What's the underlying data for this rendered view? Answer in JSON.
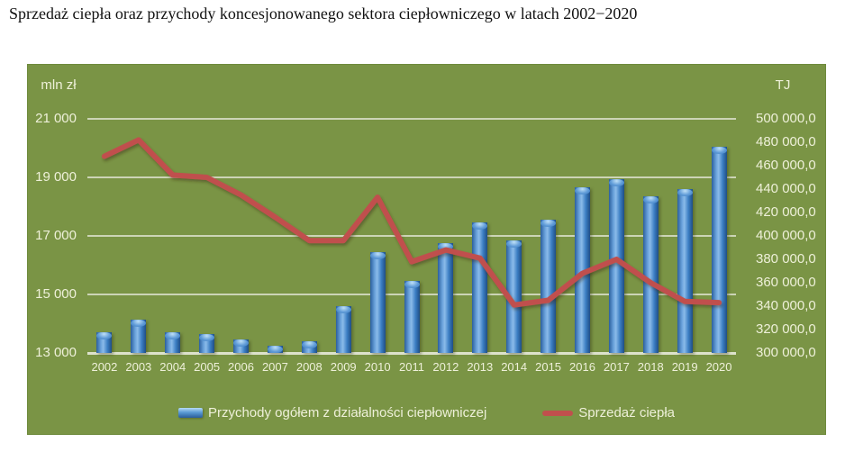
{
  "title": "Sprzedaż ciepła oraz przychody koncesjonowanego sektora ciepłowniczego w latach 2002−2020",
  "chart_data": {
    "type": "bar",
    "subtype": "combo-bar-line-dual-axis",
    "categories": [
      "2002",
      "2003",
      "2004",
      "2005",
      "2006",
      "2007",
      "2008",
      "2009",
      "2010",
      "2011",
      "2012",
      "2013",
      "2014",
      "2015",
      "2016",
      "2017",
      "2018",
      "2019",
      "2020"
    ],
    "series": [
      {
        "name": "Przychody ogółem z działalności ciepłowniczej",
        "type": "bar",
        "axis": "left",
        "unit": "mln zł",
        "values": [
          13700,
          14150,
          13700,
          13650,
          13450,
          13250,
          13400,
          14600,
          16450,
          15450,
          16750,
          17450,
          16850,
          17550,
          18650,
          18950,
          18350,
          18600,
          20050
        ]
      },
      {
        "name": "Sprzedaż ciepła",
        "type": "line",
        "axis": "right",
        "unit": "TJ",
        "values": [
          468000,
          482000,
          452000,
          450000,
          435000,
          416000,
          396000,
          396000,
          433000,
          378000,
          388000,
          381000,
          341000,
          345000,
          368000,
          380000,
          360000,
          344000,
          343000
        ]
      }
    ],
    "left_axis": {
      "title": "mln zł",
      "min": 13000,
      "max": 21000,
      "step": 2000,
      "tick_labels": [
        "21 000",
        "19 000",
        "17 000",
        "15 000",
        "13 000"
      ]
    },
    "right_axis": {
      "title": "TJ",
      "min": 300000,
      "max": 500000,
      "step": 20000,
      "tick_labels": [
        "500 000,0",
        "480 000,0",
        "460 000,0",
        "440 000,0",
        "420 000,0",
        "400 000,0",
        "380 000,0",
        "360 000,0",
        "340 000,0",
        "320 000,0",
        "300 000,0"
      ]
    },
    "grid": "horizontal",
    "legend_position": "bottom"
  },
  "colors": {
    "chart_bg": "#7a9445",
    "grid": "#ccd4b6",
    "axis_text": "#eef0d9",
    "bar": "#3c7ec4",
    "line": "#c0504d",
    "title_text": "#111111"
  }
}
